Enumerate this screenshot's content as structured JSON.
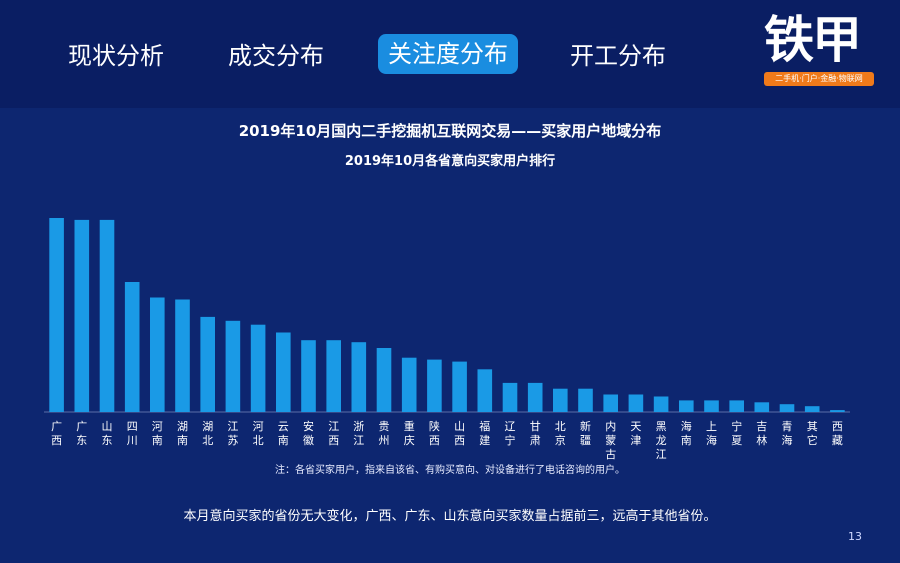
{
  "nav": {
    "tabs": [
      {
        "label": "现状分析",
        "active": false
      },
      {
        "label": "成交分布",
        "active": false
      },
      {
        "label": "关注度分布",
        "active": true
      },
      {
        "label": "开工分布",
        "active": false
      }
    ]
  },
  "logo": {
    "text": "铁甲",
    "tagline": "二手机·门户·金融·物联网"
  },
  "colors": {
    "background": "#0b2066",
    "bar": "#1a9ae6",
    "active_tab": "#1a8de0",
    "logo_tag": "#f07a1a"
  },
  "chart_data": {
    "type": "bar",
    "title": "2019年10月国内二手挖掘机互联网交易——买家用户地域分布",
    "subtitle": "2019年10月各省意向买家用户排行",
    "categories": [
      "广西",
      "广东",
      "山东",
      "四川",
      "河南",
      "湖南",
      "湖北",
      "江苏",
      "河北",
      "云南",
      "安徽",
      "江西",
      "浙江",
      "贵州",
      "重庆",
      "陕西",
      "山西",
      "福建",
      "辽宁",
      "甘肃",
      "北京",
      "新疆",
      "内蒙古",
      "天津",
      "黑龙江",
      "海南",
      "上海",
      "宁夏",
      "吉林",
      "青海",
      "其它",
      "西藏"
    ],
    "values": [
      100,
      99,
      99,
      67,
      59,
      58,
      49,
      47,
      45,
      41,
      37,
      37,
      36,
      33,
      28,
      27,
      26,
      22,
      15,
      15,
      12,
      12,
      9,
      9,
      8,
      6,
      6,
      6,
      5,
      4,
      3,
      1
    ],
    "ylim": [
      0,
      100
    ],
    "grid": false,
    "legend": "none"
  },
  "note": "注：各省买家用户，指来自该省、有购买意向、对设备进行了电话咨询的用户。",
  "summary": "本月意向买家的省份无大变化，广西、广东、山东意向买家数量占据前三，远高于其他省份。",
  "page_number": "13"
}
